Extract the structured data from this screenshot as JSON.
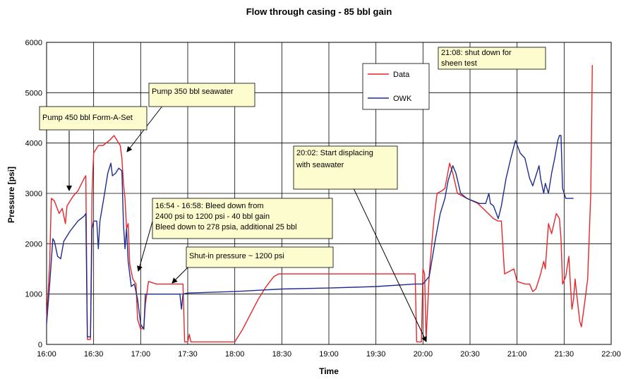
{
  "chart_data": {
    "type": "line",
    "title": "Flow through casing - 85 bbl gain",
    "xlabel": "Time",
    "ylabel": "Pressure [psi]",
    "xlim": [
      "16:00",
      "22:00"
    ],
    "ylim": [
      0,
      6000
    ],
    "grid": true,
    "legend_position": "top-right",
    "x_ticks": [
      "16:00",
      "16:30",
      "17:00",
      "17:30",
      "18:00",
      "18:30",
      "19:00",
      "19:30",
      "20:00",
      "20:30",
      "21:00",
      "21:30",
      "22:00"
    ],
    "y_ticks": [
      "0",
      "1000",
      "2000",
      "3000",
      "4000",
      "5000",
      "6000"
    ],
    "series": [
      {
        "name": "Data",
        "color": "#e8252a",
        "points": [
          [
            "16:00",
            500
          ],
          [
            "16:02",
            1600
          ],
          [
            "16:03",
            2900
          ],
          [
            "16:05",
            2850
          ],
          [
            "16:08",
            2600
          ],
          [
            "16:10",
            2700
          ],
          [
            "16:12",
            2400
          ],
          [
            "16:13",
            2750
          ],
          [
            "16:17",
            2950
          ],
          [
            "16:20",
            3050
          ],
          [
            "16:24",
            3300
          ],
          [
            "16:25",
            3350
          ],
          [
            "16:26",
            100
          ],
          [
            "16:28",
            100
          ],
          [
            "16:29",
            3000
          ],
          [
            "16:30",
            3800
          ],
          [
            "16:33",
            3950
          ],
          [
            "16:36",
            3950
          ],
          [
            "16:40",
            4050
          ],
          [
            "16:43",
            4150
          ],
          [
            "16:45",
            4050
          ],
          [
            "16:47",
            3950
          ],
          [
            "16:48",
            3700
          ],
          [
            "16:49",
            3200
          ],
          [
            "16:50",
            2900
          ],
          [
            "16:51",
            2300
          ],
          [
            "16:52",
            2400
          ],
          [
            "16:53",
            1600
          ],
          [
            "16:55",
            1300
          ],
          [
            "16:57",
            1200
          ],
          [
            "16:58",
            500
          ],
          [
            "17:00",
            300
          ],
          [
            "17:02",
            350
          ],
          [
            "17:03",
            800
          ],
          [
            "17:05",
            1250
          ],
          [
            "17:10",
            1200
          ],
          [
            "17:15",
            1200
          ],
          [
            "17:20",
            1200
          ],
          [
            "17:25",
            1200
          ],
          [
            "17:27",
            1200
          ],
          [
            "17:28",
            50
          ],
          [
            "17:30",
            50
          ],
          [
            "17:31",
            200
          ],
          [
            "17:32",
            50
          ],
          [
            "17:40",
            50
          ],
          [
            "17:50",
            50
          ],
          [
            "18:00",
            50
          ],
          [
            "18:05",
            300
          ],
          [
            "18:10",
            600
          ],
          [
            "18:15",
            900
          ],
          [
            "18:20",
            1150
          ],
          [
            "18:25",
            1350
          ],
          [
            "18:28",
            1400
          ],
          [
            "19:00",
            1400
          ],
          [
            "19:30",
            1400
          ],
          [
            "19:55",
            1400
          ],
          [
            "19:56",
            50
          ],
          [
            "19:59",
            50
          ],
          [
            "20:00",
            1500
          ],
          [
            "20:01",
            1400
          ],
          [
            "20:02",
            100
          ],
          [
            "20:04",
            1400
          ],
          [
            "20:07",
            2500
          ],
          [
            "20:09",
            3000
          ],
          [
            "20:12",
            3050
          ],
          [
            "20:14",
            3100
          ],
          [
            "20:17",
            3600
          ],
          [
            "20:19",
            3400
          ],
          [
            "20:22",
            3000
          ],
          [
            "20:28",
            2900
          ],
          [
            "20:35",
            2800
          ],
          [
            "20:40",
            2650
          ],
          [
            "20:45",
            2500
          ],
          [
            "20:48",
            2450
          ],
          [
            "20:50",
            2450
          ],
          [
            "20:52",
            1400
          ],
          [
            "20:55",
            1450
          ],
          [
            "20:58",
            1500
          ],
          [
            "21:00",
            1250
          ],
          [
            "21:05",
            1200
          ],
          [
            "21:08",
            1200
          ],
          [
            "21:10",
            1050
          ],
          [
            "21:12",
            1100
          ],
          [
            "21:14",
            1300
          ],
          [
            "21:15",
            1400
          ],
          [
            "21:17",
            1650
          ],
          [
            "21:18",
            1500
          ],
          [
            "21:20",
            2400
          ],
          [
            "21:22",
            2200
          ],
          [
            "21:25",
            2600
          ],
          [
            "21:27",
            2500
          ],
          [
            "21:28",
            2100
          ],
          [
            "21:29",
            1200
          ],
          [
            "21:31",
            1350
          ],
          [
            "21:33",
            1750
          ],
          [
            "21:34",
            1200
          ],
          [
            "21:35",
            700
          ],
          [
            "21:36",
            900
          ],
          [
            "21:37",
            1300
          ],
          [
            "21:38",
            1000
          ],
          [
            "21:40",
            450
          ],
          [
            "21:41",
            350
          ],
          [
            "21:43",
            800
          ],
          [
            "21:45",
            1300
          ],
          [
            "21:47",
            3000
          ],
          [
            "21:48",
            5550
          ]
        ]
      },
      {
        "name": "OWK",
        "color": "#1e2d8c",
        "points": [
          [
            "16:00",
            400
          ],
          [
            "16:02",
            1200
          ],
          [
            "16:04",
            2100
          ],
          [
            "16:05",
            2050
          ],
          [
            "16:07",
            1750
          ],
          [
            "16:09",
            1700
          ],
          [
            "16:11",
            2050
          ],
          [
            "16:15",
            2250
          ],
          [
            "16:20",
            2450
          ],
          [
            "16:24",
            2550
          ],
          [
            "16:25",
            2600
          ],
          [
            "16:26",
            150
          ],
          [
            "16:28",
            150
          ],
          [
            "16:29",
            2300
          ],
          [
            "16:30",
            2450
          ],
          [
            "16:32",
            2450
          ],
          [
            "16:33",
            1900
          ],
          [
            "16:34",
            2450
          ],
          [
            "16:37",
            3000
          ],
          [
            "16:39",
            3400
          ],
          [
            "16:41",
            3600
          ],
          [
            "16:42",
            3350
          ],
          [
            "16:44",
            3400
          ],
          [
            "16:46",
            3500
          ],
          [
            "16:48",
            3450
          ],
          [
            "16:49",
            2400
          ],
          [
            "16:50",
            1900
          ],
          [
            "16:51",
            2300
          ],
          [
            "16:52",
            1650
          ],
          [
            "16:54",
            1150
          ],
          [
            "16:56",
            1200
          ],
          [
            "16:58",
            900
          ],
          [
            "17:00",
            400
          ],
          [
            "17:02",
            300
          ],
          [
            "17:03",
            1000
          ],
          [
            "17:06",
            1000
          ],
          [
            "17:10",
            1000
          ],
          [
            "17:25",
            1000
          ],
          [
            "17:26",
            700
          ],
          [
            "17:27",
            1000
          ],
          [
            "17:30",
            1020
          ],
          [
            "18:00",
            1050
          ],
          [
            "18:30",
            1100
          ],
          [
            "19:00",
            1120
          ],
          [
            "19:30",
            1150
          ],
          [
            "19:55",
            1200
          ],
          [
            "20:00",
            1200
          ],
          [
            "20:04",
            1350
          ],
          [
            "20:08",
            2100
          ],
          [
            "20:11",
            2600
          ],
          [
            "20:14",
            2900
          ],
          [
            "20:16",
            3250
          ],
          [
            "20:19",
            3550
          ],
          [
            "20:21",
            3400
          ],
          [
            "20:24",
            3000
          ],
          [
            "20:28",
            2900
          ],
          [
            "20:32",
            2850
          ],
          [
            "20:36",
            2800
          ],
          [
            "20:40",
            2800
          ],
          [
            "20:42",
            3000
          ],
          [
            "20:43",
            2800
          ],
          [
            "20:45",
            2750
          ],
          [
            "20:48",
            2500
          ],
          [
            "20:50",
            2750
          ],
          [
            "20:53",
            3300
          ],
          [
            "20:56",
            3700
          ],
          [
            "20:59",
            4050
          ],
          [
            "21:02",
            3800
          ],
          [
            "21:05",
            3700
          ],
          [
            "21:08",
            3300
          ],
          [
            "21:10",
            3150
          ],
          [
            "21:12",
            3350
          ],
          [
            "21:14",
            3550
          ],
          [
            "21:15",
            3300
          ],
          [
            "21:17",
            3000
          ],
          [
            "21:18",
            3200
          ],
          [
            "21:20",
            3000
          ],
          [
            "21:22",
            3400
          ],
          [
            "21:24",
            3700
          ],
          [
            "21:26",
            4050
          ],
          [
            "21:27",
            4150
          ],
          [
            "21:28",
            4150
          ],
          [
            "21:29",
            3100
          ],
          [
            "21:31",
            2900
          ],
          [
            "21:36",
            2900
          ]
        ]
      }
    ],
    "annotations": [
      {
        "id": "pump450",
        "lines": [
          "Pump 450 bbl Form-A-Set"
        ]
      },
      {
        "id": "pump350",
        "lines": [
          "Pump 350 bbl seawater"
        ]
      },
      {
        "id": "bleed",
        "lines": [
          "16:54 - 16:58: Bleed down from",
          "2400 psi to 1200 psi - 40 bbl gain",
          "Bleed down to 278 psia, additional 25 bbl"
        ]
      },
      {
        "id": "shutin",
        "lines": [
          "Shut-in pressure ~ 1200 psi"
        ]
      },
      {
        "id": "displacing",
        "lines": [
          "20:02: Start displacing",
          "with seawater"
        ]
      },
      {
        "id": "sheen",
        "lines": [
          "21:08: shut down for",
          "sheen test"
        ]
      }
    ]
  }
}
